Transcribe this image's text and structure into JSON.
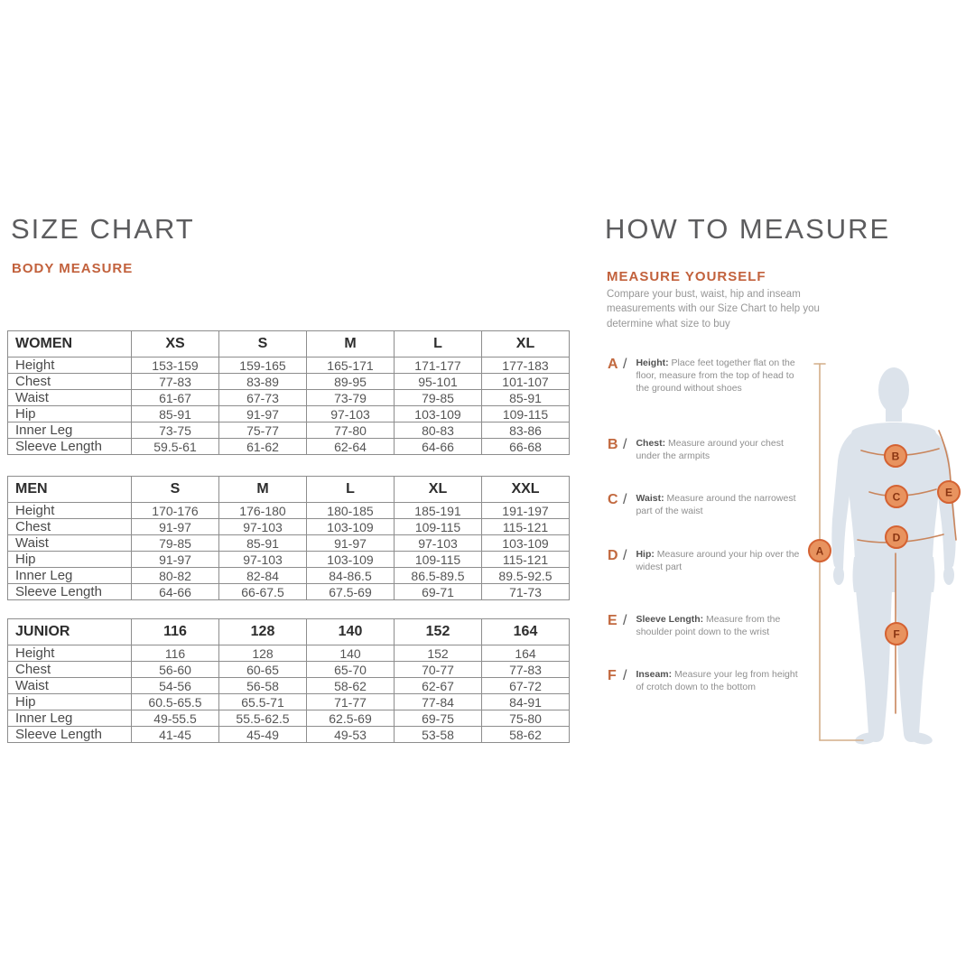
{
  "colors": {
    "accent_orange": "#c2613c",
    "title_gray": "#5c5c5e",
    "table_border": "#8d8d8d",
    "silhouette": "#dce3eb",
    "measure_line": "#c9855c",
    "height_line": "#d3ae89",
    "marker_fill": "#e8935f",
    "marker_stroke": "#d46232",
    "marker_letter": "#8a3512"
  },
  "left": {
    "title": "SIZE CHART",
    "subtitle": "BODY MEASURE",
    "tables": [
      {
        "group": "WOMEN",
        "sizes": [
          "XS",
          "S",
          "M",
          "L",
          "XL"
        ],
        "rows": [
          {
            "label": "Height",
            "values": [
              "153-159",
              "159-165",
              "165-171",
              "171-177",
              "177-183"
            ]
          },
          {
            "label": "Chest",
            "values": [
              "77-83",
              "83-89",
              "89-95",
              "95-101",
              "101-107"
            ]
          },
          {
            "label": "Waist",
            "values": [
              "61-67",
              "67-73",
              "73-79",
              "79-85",
              "85-91"
            ]
          },
          {
            "label": "Hip",
            "values": [
              "85-91",
              "91-97",
              "97-103",
              "103-109",
              "109-115"
            ]
          },
          {
            "label": "Inner Leg",
            "values": [
              "73-75",
              "75-77",
              "77-80",
              "80-83",
              "83-86"
            ]
          },
          {
            "label": "Sleeve Length",
            "values": [
              "59.5-61",
              "61-62",
              "62-64",
              "64-66",
              "66-68"
            ]
          }
        ]
      },
      {
        "group": "MEN",
        "sizes": [
          "S",
          "M",
          "L",
          "XL",
          "XXL"
        ],
        "rows": [
          {
            "label": "Height",
            "values": [
              "170-176",
              "176-180",
              "180-185",
              "185-191",
              "191-197"
            ]
          },
          {
            "label": "Chest",
            "values": [
              "91-97",
              "97-103",
              "103-109",
              "109-115",
              "115-121"
            ]
          },
          {
            "label": "Waist",
            "values": [
              "79-85",
              "85-91",
              "91-97",
              "97-103",
              "103-109"
            ]
          },
          {
            "label": "Hip",
            "values": [
              "91-97",
              "97-103",
              "103-109",
              "109-115",
              "115-121"
            ]
          },
          {
            "label": "Inner Leg",
            "values": [
              "80-82",
              "82-84",
              "84-86.5",
              "86.5-89.5",
              "89.5-92.5"
            ]
          },
          {
            "label": "Sleeve Length",
            "values": [
              "64-66",
              "66-67.5",
              "67.5-69",
              "69-71",
              "71-73"
            ]
          }
        ]
      },
      {
        "group": "JUNIOR",
        "sizes": [
          "116",
          "128",
          "140",
          "152",
          "164"
        ],
        "rows": [
          {
            "label": "Height",
            "values": [
              "116",
              "128",
              "140",
              "152",
              "164"
            ]
          },
          {
            "label": "Chest",
            "values": [
              "56-60",
              "60-65",
              "65-70",
              "70-77",
              "77-83"
            ]
          },
          {
            "label": "Waist",
            "values": [
              "54-56",
              "56-58",
              "58-62",
              "62-67",
              "67-72"
            ]
          },
          {
            "label": "Hip",
            "values": [
              "60.5-65.5",
              "65.5-71",
              "71-77",
              "77-84",
              "84-91"
            ]
          },
          {
            "label": "Inner Leg",
            "values": [
              "49-55.5",
              "55.5-62.5",
              "62.5-69",
              "69-75",
              "75-80"
            ]
          },
          {
            "label": "Sleeve Length",
            "values": [
              "41-45",
              "45-49",
              "49-53",
              "53-58",
              "58-62"
            ]
          }
        ]
      }
    ]
  },
  "right": {
    "title": "HOW TO MEASURE",
    "subtitle": "MEASURE YOURSELF",
    "intro": "Compare your bust, waist, hip and inseam measurements with our Size Chart to help you determine what size to buy",
    "slash_glyph": "/",
    "steps": [
      {
        "letter": "A",
        "term": "Height:",
        "desc": "Place feet together flat on the floor, measure from the top of head to the ground without shoes"
      },
      {
        "letter": "B",
        "term": "Chest:",
        "desc": "Measure around your chest under the armpits"
      },
      {
        "letter": "C",
        "term": "Waist:",
        "desc": "Measure around the narrowest part of the waist"
      },
      {
        "letter": "D",
        "term": "Hip:",
        "desc": "Measure around your hip over the widest part"
      },
      {
        "letter": "E",
        "term": "Sleeve Length:",
        "desc": "Measure from the shoulder point down to the wrist"
      },
      {
        "letter": "F",
        "term": "Inseam:",
        "desc": "Measure your leg from height of crotch down to the bottom"
      }
    ],
    "diagram": {
      "markers": [
        "A",
        "B",
        "C",
        "D",
        "E",
        "F"
      ]
    }
  }
}
